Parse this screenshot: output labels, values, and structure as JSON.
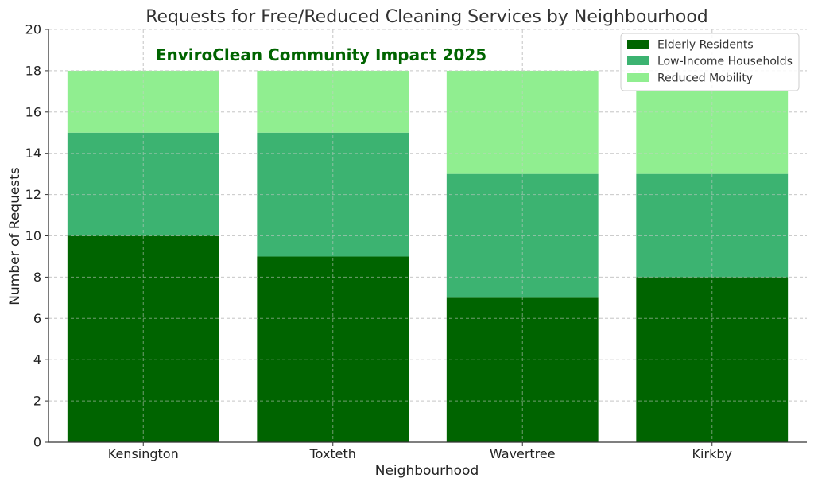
{
  "chart_data": {
    "type": "bar",
    "stacked": true,
    "title": "Requests for Free/Reduced Cleaning Services by Neighbourhood",
    "annotation": "EnviroClean Community Impact 2025",
    "annotation_color": "#006400",
    "xlabel": "Neighbourhood",
    "ylabel": "Number of Requests",
    "ylim": [
      0,
      20
    ],
    "yticks": [
      "0",
      "2",
      "4",
      "6",
      "8",
      "10",
      "12",
      "14",
      "16",
      "18",
      "20"
    ],
    "grid": true,
    "legend_position": "top-right",
    "categories": [
      "Kensington",
      "Toxteth",
      "Wavertree",
      "Kirkby"
    ],
    "series": [
      {
        "name": "Elderly Residents",
        "color": "#006400",
        "values": [
          10,
          9,
          7,
          8
        ]
      },
      {
        "name": "Low-Income Households",
        "color": "#3cb371",
        "values": [
          5,
          6,
          6,
          5
        ]
      },
      {
        "name": "Reduced Mobility",
        "color": "#90ee90",
        "values": [
          3,
          3,
          5,
          4
        ]
      }
    ]
  }
}
